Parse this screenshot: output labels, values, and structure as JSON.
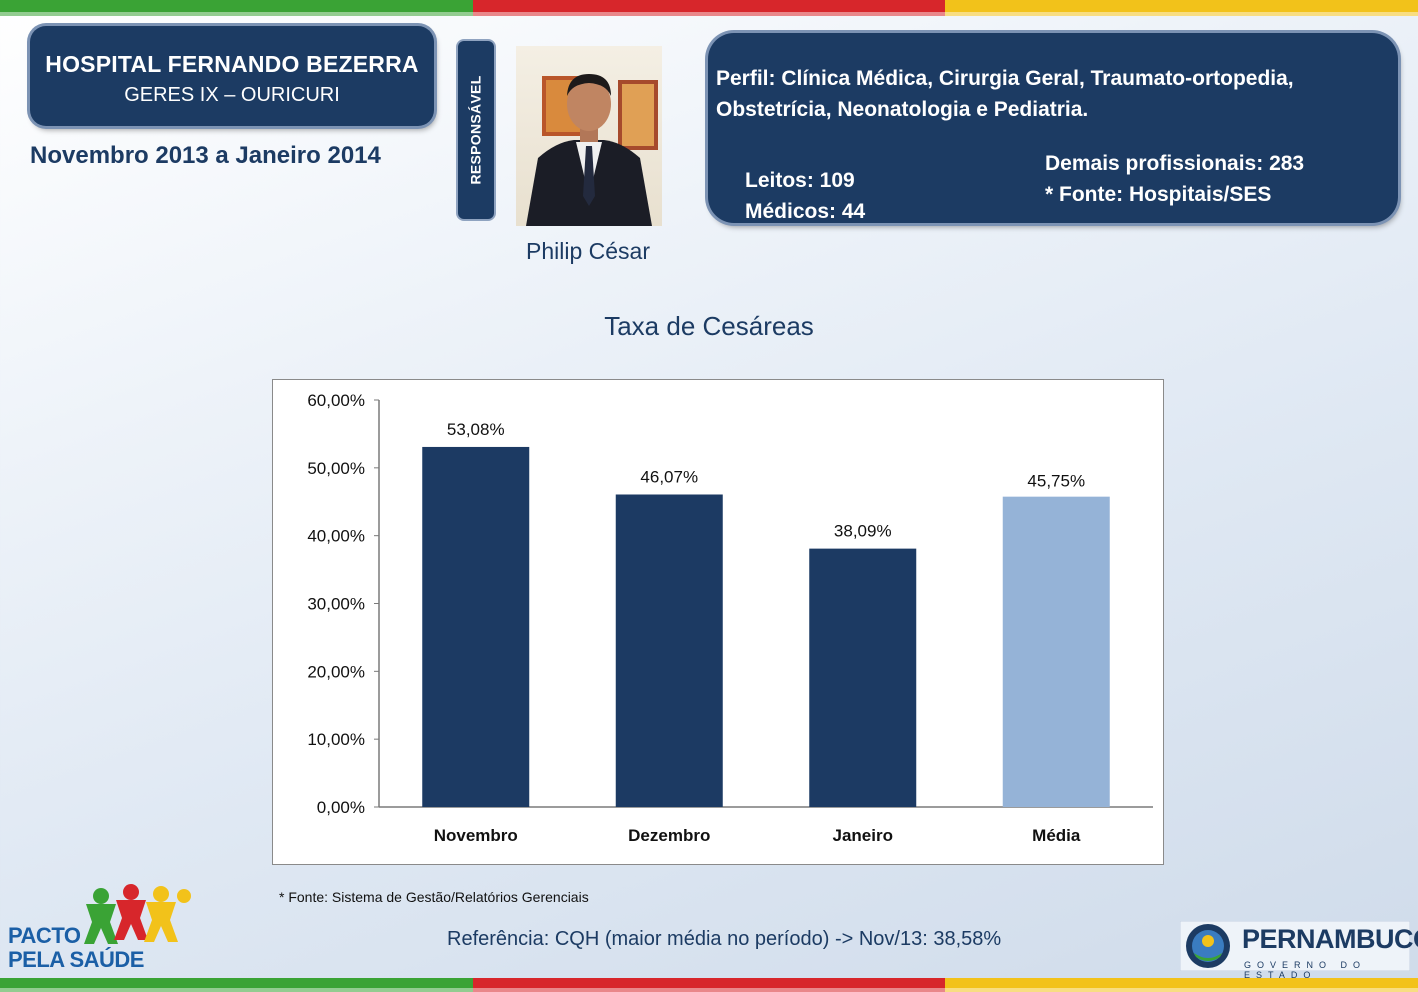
{
  "header": {
    "hospital_name": "HOSPITAL FERNANDO BEZERRA",
    "geres": "GERES IX – OURICURI",
    "period": "Novembro 2013 a Janeiro 2014",
    "responsavel_label": "RESPONSÁVEL",
    "responsavel_name": "Philip César"
  },
  "info": {
    "perfil": "Perfil: Clínica Médica, Cirurgia Geral, Traumato-ortopedia, Obstetrícia, Neonatologia e Pediatria.",
    "leitos": "Leitos: 109",
    "medicos": "Médicos: 44",
    "demais": "Demais profissionais: 283",
    "fonte": "* Fonte: Hospitais/SES"
  },
  "chart_title": "Taxa de Cesáreas",
  "chart_data": {
    "type": "bar",
    "title": "Taxa de Cesáreas",
    "categories": [
      "Novembro",
      "Dezembro",
      "Janeiro",
      "Média"
    ],
    "values": [
      53.08,
      46.07,
      38.09,
      45.75
    ],
    "value_labels": [
      "53,08%",
      "46,07%",
      "38,09%",
      "45,75%"
    ],
    "colors": [
      "#1c3a63",
      "#1c3a63",
      "#1c3a63",
      "#95b3d7"
    ],
    "ylim": [
      0,
      60
    ],
    "yticks": [
      "0,00%",
      "10,00%",
      "20,00%",
      "30,00%",
      "40,00%",
      "50,00%",
      "60,00%"
    ],
    "xlabel": "",
    "ylabel": "",
    "grid": false
  },
  "footer": {
    "source_note": "* Fonte: Sistema de Gestão/Relatórios Gerenciais",
    "reference": "Referência: CQH  (maior média no período) -> Nov/13: 38,58%",
    "pacto_line1": "PACTO",
    "pacto_line2": "PELA SAÚDE",
    "pernambuco": "PERNAMBUCO",
    "governo": "GOVERNO DO ESTADO"
  },
  "colors": {
    "navy": "#1c3b63",
    "stripe_green": "#3aa335",
    "stripe_red": "#d7262b",
    "stripe_yellow": "#f2c21a"
  }
}
